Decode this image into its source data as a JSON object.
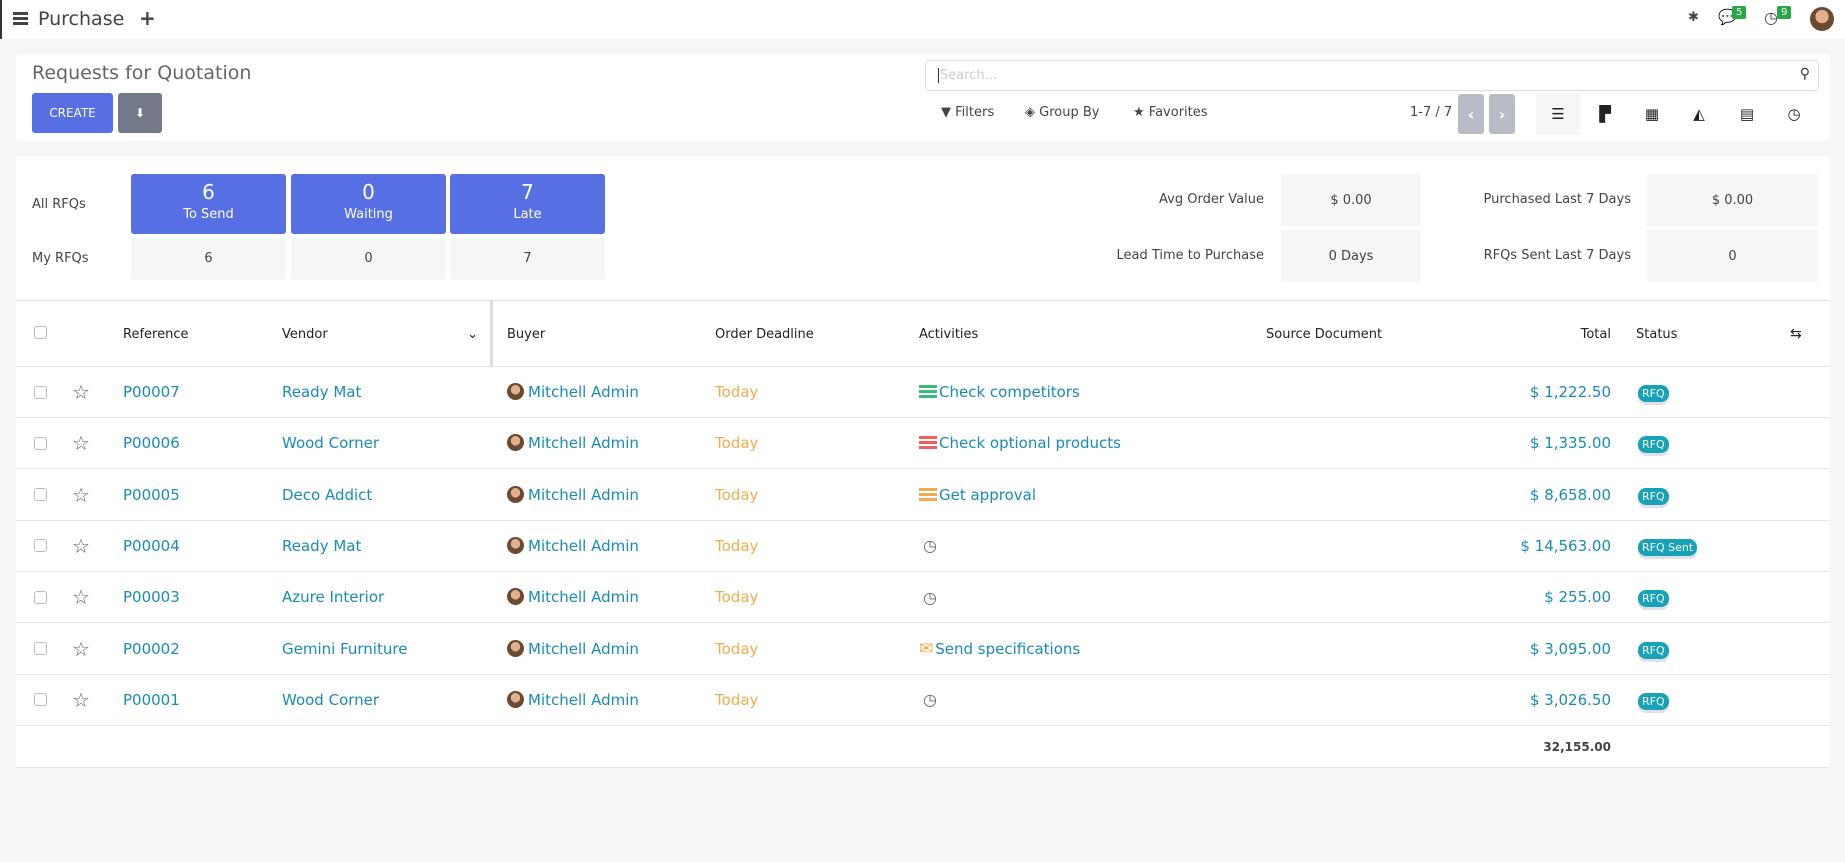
{
  "app": {
    "title": "Purchase",
    "notifications": {
      "messages": "5",
      "activities": "9"
    }
  },
  "control": {
    "title": "Requests for Quotation",
    "create": "CREATE",
    "search_placeholder": "Search...",
    "filters": "Filters",
    "group_by": "Group By",
    "favorites": "Favorites",
    "pager": "1-7 / 7",
    "active_view": "list"
  },
  "dashboard": {
    "all_label": "All RFQs",
    "my_label": "My RFQs",
    "tiles": [
      {
        "count": "6",
        "label": "To Send",
        "mine": "6"
      },
      {
        "count": "0",
        "label": "Waiting",
        "mine": "0"
      },
      {
        "count": "7",
        "label": "Late",
        "mine": "7"
      }
    ],
    "stats": [
      {
        "label": "Avg Order Value",
        "value": "$ 0.00"
      },
      {
        "label": "Purchased Last 7 Days",
        "value": "$ 0.00"
      },
      {
        "label": "Lead Time to Purchase",
        "value": "0 Days"
      },
      {
        "label": "RFQs Sent Last 7 Days",
        "value": "0"
      }
    ]
  },
  "table": {
    "headers": {
      "reference": "Reference",
      "vendor": "Vendor",
      "buyer": "Buyer",
      "deadline": "Order Deadline",
      "activities": "Activities",
      "source": "Source Document",
      "total": "Total",
      "status": "Status"
    },
    "rows": [
      {
        "ref": "P00007",
        "vendor": "Ready Mat",
        "buyer": "Mitchell Admin",
        "deadline": "Today",
        "activity": "Check competitors",
        "activity_color": "#3cba7c",
        "total": "$ 1,222.50",
        "status": "RFQ"
      },
      {
        "ref": "P00006",
        "vendor": "Wood Corner",
        "buyer": "Mitchell Admin",
        "deadline": "Today",
        "activity": "Check optional products",
        "activity_color": "#ef6061",
        "total": "$ 1,335.00",
        "status": "RFQ"
      },
      {
        "ref": "P00005",
        "vendor": "Deco Addict",
        "buyer": "Mitchell Admin",
        "deadline": "Today",
        "activity": "Get approval",
        "activity_color": "#f0ad4e",
        "total": "$ 8,658.00",
        "status": "RFQ"
      },
      {
        "ref": "P00004",
        "vendor": "Ready Mat",
        "buyer": "Mitchell Admin",
        "deadline": "Today",
        "activity": "",
        "activity_color": "",
        "total": "$ 14,563.00",
        "status": "RFQ Sent"
      },
      {
        "ref": "P00003",
        "vendor": "Azure Interior",
        "buyer": "Mitchell Admin",
        "deadline": "Today",
        "activity": "",
        "activity_color": "",
        "total": "$ 255.00",
        "status": "RFQ"
      },
      {
        "ref": "P00002",
        "vendor": "Gemini Furniture",
        "buyer": "Mitchell Admin",
        "deadline": "Today",
        "activity": "Send specifications",
        "activity_color": "#f0ad4e",
        "activity_icon": "envelope",
        "total": "$ 3,095.00",
        "status": "RFQ"
      },
      {
        "ref": "P00001",
        "vendor": "Wood Corner",
        "buyer": "Mitchell Admin",
        "deadline": "Today",
        "activity": "",
        "activity_color": "",
        "total": "$ 3,026.50",
        "status": "RFQ"
      }
    ],
    "sum_total": "32,155.00"
  },
  "colors": {
    "primary": "#5670e4",
    "link": "#1a8bb5",
    "today": "#f0ad4e",
    "status": "#17a2b8"
  }
}
